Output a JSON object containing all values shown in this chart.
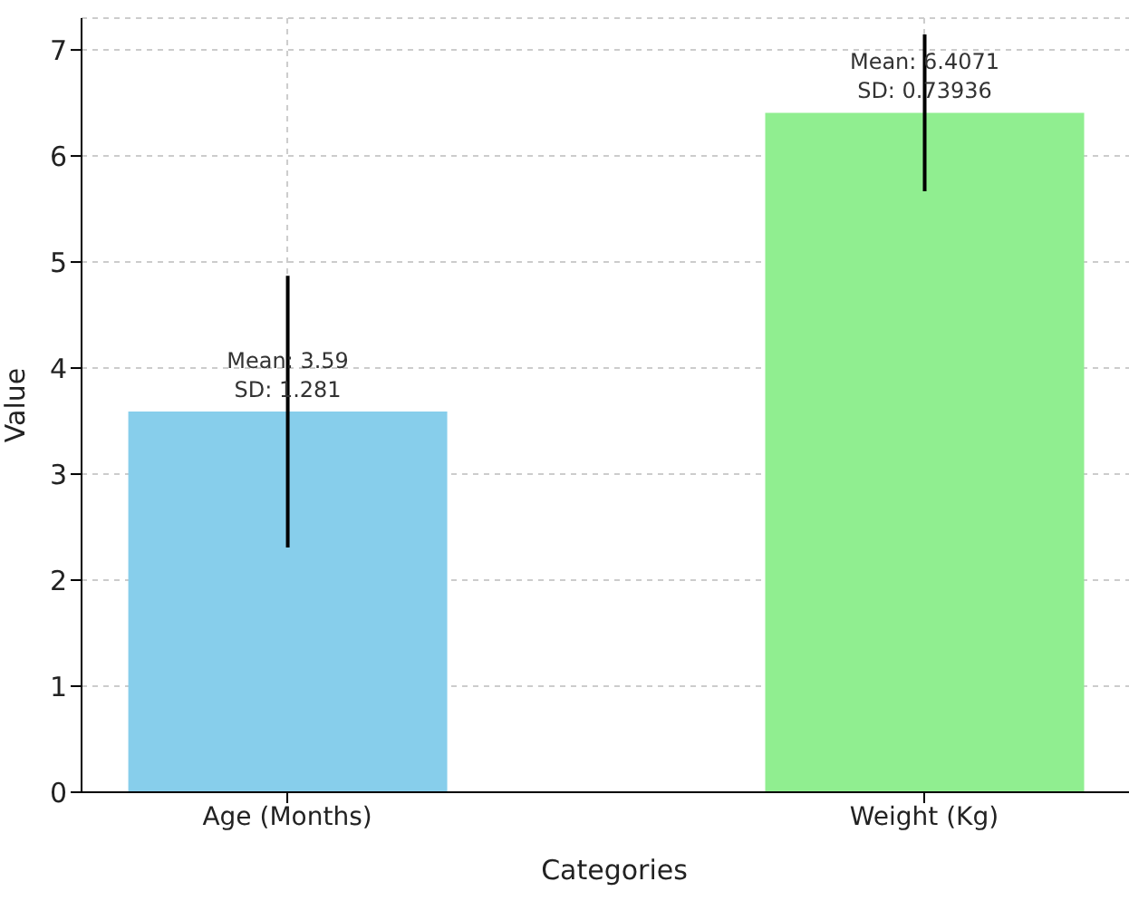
{
  "chart_data": {
    "type": "bar",
    "xlabel": "Categories",
    "ylabel": "Value",
    "categories": [
      "Age (Months)",
      "Weight (Kg)"
    ],
    "values": [
      3.59,
      6.4071
    ],
    "colors": [
      "#87ceeb",
      "#90ee90"
    ],
    "errors": [
      1.281,
      0.73936
    ],
    "value_labels": [
      "Mean: 3.59\nSD: 1.281",
      "Mean: 6.4071\nSD: 0.73936"
    ],
    "ylim": [
      0,
      7.3
    ],
    "yticks": [
      0,
      1,
      2,
      3,
      4,
      5,
      6,
      7
    ],
    "grid": true
  }
}
